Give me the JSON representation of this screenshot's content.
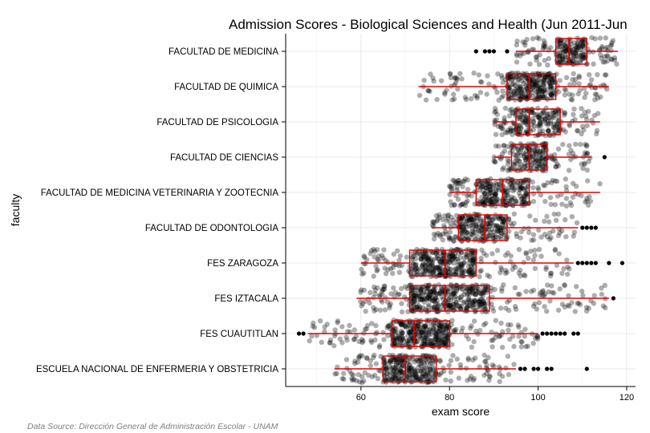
{
  "chart_data": {
    "type": "boxplot",
    "title": "Admission Scores - Biological Sciences and Health (Jun 2011-Jun",
    "xlabel": "exam score",
    "ylabel": "faculty",
    "source": "Data Source: Dirección General de Administración Escolar - UNAM",
    "xlim": [
      43,
      122
    ],
    "xticks": [
      "60",
      "80",
      "100",
      "120"
    ],
    "grid": true,
    "colors": {
      "box": "#e00000",
      "points": "#000000"
    },
    "categories": [
      "FACULTAD DE MEDICINA",
      "FACULTAD DE QUIMICA",
      "FACULTAD DE PSICOLOGIA",
      "FACULTAD DE CIENCIAS",
      "FACULTAD DE MEDICINA VETERINARIA Y ZOOTECNIA",
      "FACULTAD DE ODONTOLOGIA",
      "FES ZARAGOZA",
      "FES IZTACALA",
      "FES CUAUTITLAN",
      "ESCUELA NACIONAL DE ENFERMERIA Y OBSTETRICIA"
    ],
    "boxes": [
      {
        "min": 95,
        "q1": 104,
        "median": 107,
        "q3": 111,
        "max": 118,
        "outliers": [
          86,
          88,
          89,
          90,
          93
        ]
      },
      {
        "min": 73,
        "q1": 93,
        "median": 98,
        "q3": 104,
        "max": 116,
        "outliers": []
      },
      {
        "min": 90,
        "q1": 95,
        "median": 98,
        "q3": 105,
        "max": 114,
        "outliers": []
      },
      {
        "min": 90,
        "q1": 94,
        "median": 98,
        "q3": 102,
        "max": 112,
        "outliers": [
          115
        ]
      },
      {
        "min": 80,
        "q1": 86,
        "median": 92,
        "q3": 98,
        "max": 114,
        "outliers": []
      },
      {
        "min": 76,
        "q1": 82,
        "median": 88,
        "q3": 93,
        "max": 109,
        "outliers": [
          110,
          111,
          112,
          113
        ]
      },
      {
        "min": 60,
        "q1": 71,
        "median": 79,
        "q3": 86,
        "max": 108,
        "outliers": [
          109,
          110,
          111,
          112,
          113,
          116,
          119
        ]
      },
      {
        "min": 59,
        "q1": 71,
        "median": 79,
        "q3": 89,
        "max": 116,
        "outliers": [
          117
        ]
      },
      {
        "min": 48,
        "q1": 67,
        "median": 72,
        "q3": 80,
        "max": 100,
        "outliers": [
          46,
          47,
          101,
          102,
          103,
          104,
          105,
          106,
          108,
          109
        ]
      },
      {
        "min": 54,
        "q1": 65,
        "median": 70,
        "q3": 77,
        "max": 95,
        "outliers": [
          96,
          97,
          99,
          100,
          102,
          103,
          111
        ]
      }
    ]
  }
}
